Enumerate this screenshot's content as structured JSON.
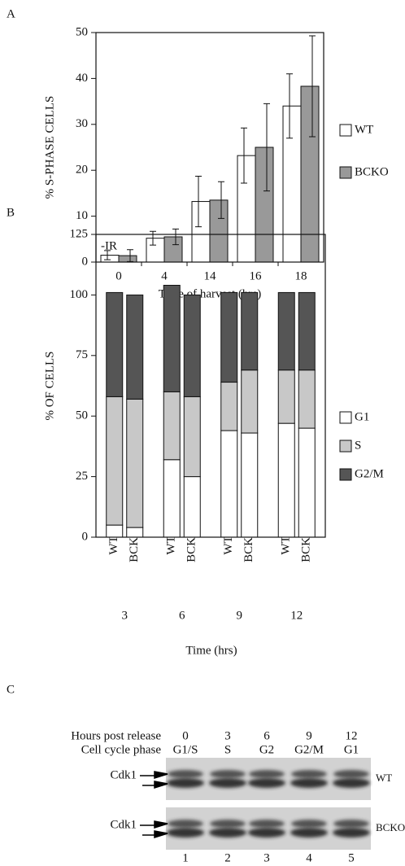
{
  "chart_data": [
    {
      "type": "bar",
      "panel": "A",
      "xlabel": "Time of harvest (hrs)",
      "ylabel": "% S-PHASE CELLS",
      "categories": [
        "0",
        "4",
        "14",
        "16",
        "18"
      ],
      "series": [
        {
          "name": "WT",
          "color": "#ffffff",
          "values": [
            1.5,
            5.2,
            13.2,
            23.2,
            34
          ],
          "errors": [
            1,
            1.5,
            5.5,
            6,
            7
          ]
        },
        {
          "name": "BCKO",
          "color": "#999999",
          "values": [
            1.4,
            5.5,
            13.5,
            25,
            38.3
          ],
          "errors": [
            1.3,
            1.7,
            4,
            9.5,
            11
          ]
        }
      ],
      "ylim": [
        0,
        50
      ],
      "yticks": [
        0,
        10,
        20,
        30,
        40,
        50
      ],
      "grid": false,
      "legend": "right"
    },
    {
      "type": "stacked_bar",
      "panel": "B",
      "annotation": "-IR",
      "xlabel": "Time (hrs)",
      "ylabel": "% OF CELLS",
      "categories": [
        "WT",
        "BCKO",
        "WT",
        "BCKO",
        "WT",
        "BCKO",
        "WT",
        "BCKO"
      ],
      "group_labels": [
        "3",
        "6",
        "9",
        "12"
      ],
      "series": [
        {
          "name": "G1",
          "color": "#ffffff",
          "values": [
            5,
            4,
            32,
            25,
            44,
            43,
            47,
            45
          ]
        },
        {
          "name": "S",
          "color": "#c8c8c8",
          "values": [
            53,
            53,
            28,
            33,
            20,
            26,
            22,
            24
          ]
        },
        {
          "name": "G2/M",
          "color": "#555555",
          "values": [
            43,
            43,
            44,
            42,
            37,
            32,
            32,
            32
          ]
        }
      ],
      "ylim": [
        0,
        125
      ],
      "yticks": [
        0,
        25,
        50,
        75,
        100,
        125
      ],
      "grid": false,
      "legend": "right"
    }
  ],
  "panel_c": {
    "panel": "C",
    "hours_label": "Hours post release",
    "phase_label": "Cell cycle phase",
    "hours": [
      "0",
      "3",
      "6",
      "9",
      "12"
    ],
    "phases": [
      "G1/S",
      "S",
      "G2",
      "G2/M",
      "G1"
    ],
    "rows": [
      {
        "protein": "Cdk1",
        "genotype": "WT"
      },
      {
        "protein": "Cdk1",
        "genotype": "BCKO"
      }
    ],
    "lanes": [
      "1",
      "2",
      "3",
      "4",
      "5"
    ]
  }
}
